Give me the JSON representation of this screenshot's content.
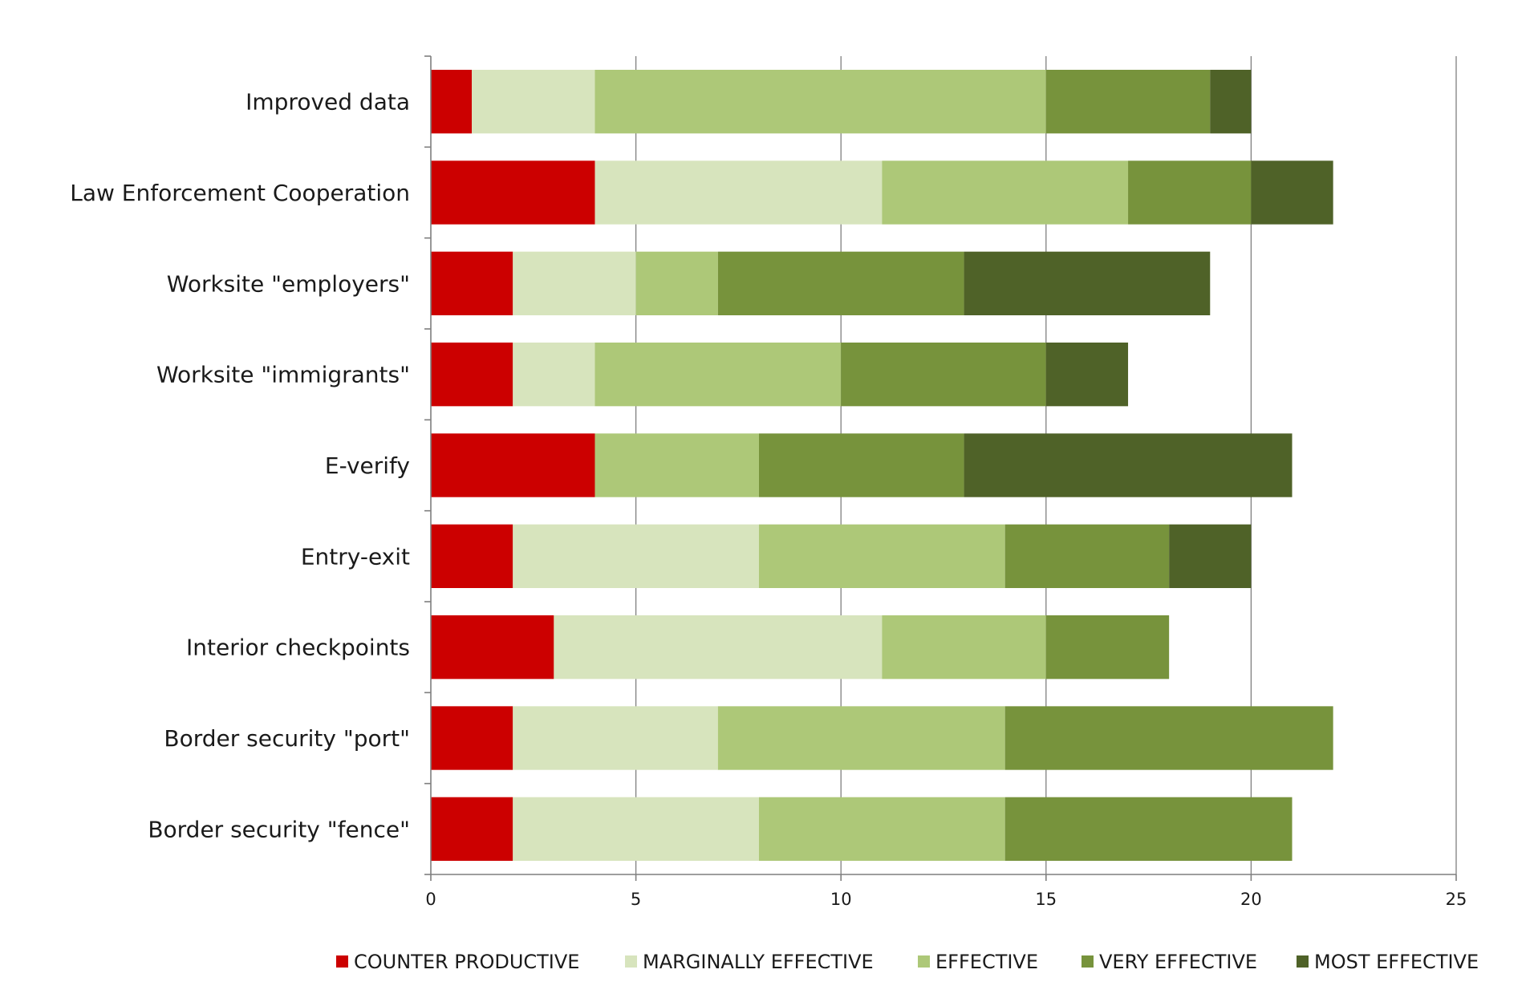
{
  "chart_data": {
    "type": "bar",
    "orientation": "horizontal",
    "stacked": true,
    "title": "",
    "xlabel": "",
    "ylabel": "",
    "xlim": [
      0,
      25
    ],
    "x_ticks": [
      "0",
      "5",
      "10",
      "15",
      "20",
      "25"
    ],
    "grid": "vertical",
    "legend_position": "bottom",
    "categories": [
      "Improved data",
      "Law Enforcement Cooperation",
      "Worksite \"employers\"",
      "Worksite \"immigrants\"",
      "E-verify",
      "Entry-exit",
      "Interior checkpoints",
      "Border security \"port\"",
      "Border security \"fence\""
    ],
    "series": [
      {
        "name": "COUNTER PRODUCTIVE",
        "color": "#cc0000",
        "values": [
          1,
          4,
          2,
          2,
          4,
          2,
          3,
          2,
          2
        ]
      },
      {
        "name": "MARGINALLY EFFECTIVE",
        "color": "#d7e4bd",
        "values": [
          3,
          7,
          3,
          2,
          0,
          6,
          8,
          5,
          6
        ]
      },
      {
        "name": "EFFECTIVE",
        "color": "#adc878",
        "values": [
          11,
          6,
          2,
          6,
          4,
          6,
          4,
          7,
          6
        ]
      },
      {
        "name": "VERY EFFECTIVE",
        "color": "#77933c",
        "values": [
          4,
          3,
          6,
          5,
          5,
          4,
          3,
          8,
          7
        ]
      },
      {
        "name": "MOST EFFECTIVE",
        "color": "#4f6228",
        "values": [
          1,
          2,
          6,
          2,
          8,
          2,
          0,
          0,
          0
        ]
      }
    ]
  }
}
